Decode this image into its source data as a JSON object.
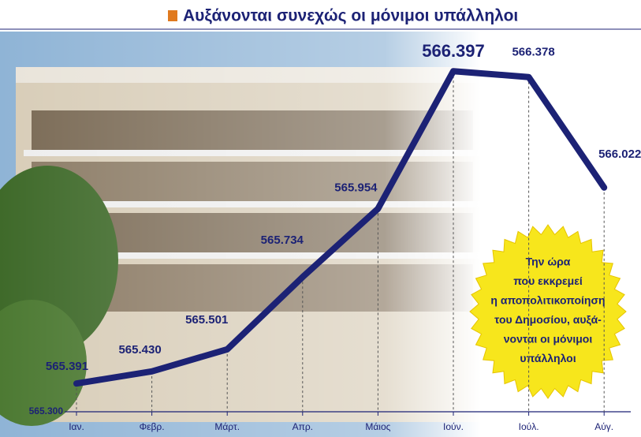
{
  "chart_data": {
    "type": "line",
    "title": "Αυξάνονται συνεχώς οι μόνιμοι υπάλληλοι",
    "categories": [
      "Ιαν.",
      "Φεβρ.",
      "Μάρτ.",
      "Απρ.",
      "Μάιος",
      "Ιούν.",
      "Ιούλ.",
      "Αύγ."
    ],
    "values": [
      565391,
      565430,
      565501,
      565734,
      565954,
      566397,
      566378,
      566022
    ],
    "value_labels": [
      "565.391",
      "565.430",
      "565.501",
      "565.734",
      "565.954",
      "566.397",
      "566.378",
      "566.022"
    ],
    "color": "#1c2275",
    "ylim": [
      565300,
      566400
    ],
    "yticks": [
      {
        "value": 565300,
        "label": "565.300"
      }
    ],
    "annotation": [
      "Την ώρα",
      "που εκκρεμεί",
      "η αποπολιτικοποίηση",
      "του Δημοσίου, αυξά-",
      "νονται οι μόνιμοι",
      "υπάλληλοι"
    ]
  }
}
